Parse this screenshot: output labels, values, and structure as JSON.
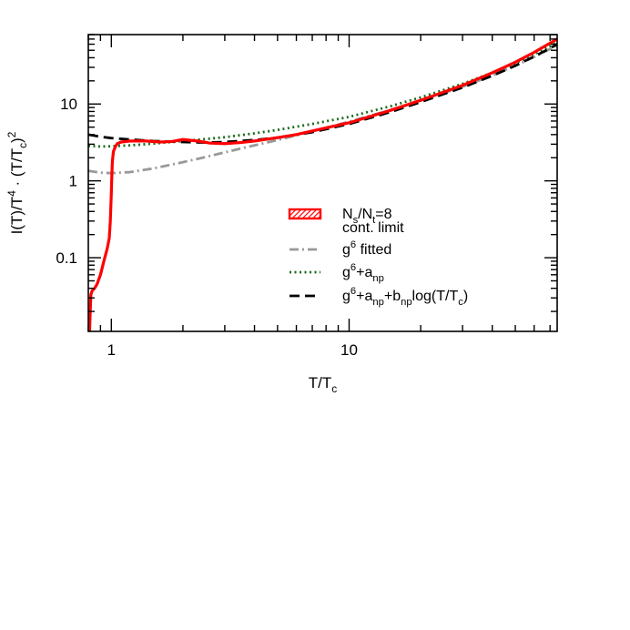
{
  "chart_data": {
    "type": "line",
    "xscale": "log",
    "yscale": "log",
    "xlim": [
      0.8,
      75
    ],
    "ylim": [
      0.011,
      80
    ],
    "xticks": [
      {
        "value": 1,
        "label": "1"
      },
      {
        "value": 10,
        "label": "10"
      }
    ],
    "yticks": [
      {
        "value": 0.1,
        "label": "0.1"
      },
      {
        "value": 1,
        "label": "1"
      },
      {
        "value": 10,
        "label": "10"
      }
    ],
    "xlabel": {
      "main": "T/T",
      "sub": "c"
    },
    "ylabel": {
      "pre": "I(T)/T",
      "sup1": "4",
      "mid": " · (T/T",
      "sub": "c",
      "post": ")",
      "sup2": "2"
    },
    "legend_position": "center-right",
    "series": [
      {
        "key": "lattice",
        "color": "#ff0000",
        "style": "solid",
        "legend": [
          {
            "t": "N"
          },
          {
            "t": "s",
            "k": "sub"
          },
          {
            "t": "/N"
          },
          {
            "t": "t",
            "k": "sub"
          },
          {
            "t": "=8"
          }
        ],
        "legend2": "cont. limit",
        "points": [
          [
            0.81,
            0.011
          ],
          [
            0.815,
            0.02
          ],
          [
            0.82,
            0.033
          ],
          [
            0.83,
            0.037
          ],
          [
            0.85,
            0.04
          ],
          [
            0.87,
            0.045
          ],
          [
            0.9,
            0.06
          ],
          [
            0.93,
            0.09
          ],
          [
            0.96,
            0.13
          ],
          [
            0.98,
            0.18
          ],
          [
            0.99,
            0.3
          ],
          [
            1.0,
            0.7
          ],
          [
            1.005,
            1.2
          ],
          [
            1.01,
            1.8
          ],
          [
            1.02,
            2.4
          ],
          [
            1.04,
            2.8
          ],
          [
            1.06,
            3.05
          ],
          [
            1.1,
            3.2
          ],
          [
            1.2,
            3.3
          ],
          [
            1.4,
            3.3
          ],
          [
            1.6,
            3.2
          ],
          [
            1.8,
            3.25
          ],
          [
            2.0,
            3.45
          ],
          [
            2.3,
            3.3
          ],
          [
            2.6,
            3.1
          ],
          [
            3.0,
            3.05
          ],
          [
            3.5,
            3.15
          ],
          [
            4.0,
            3.3
          ],
          [
            5.0,
            3.65
          ],
          [
            6.0,
            4.0
          ],
          [
            8.0,
            4.9
          ],
          [
            10.0,
            5.7
          ],
          [
            15.0,
            8.3
          ],
          [
            20.0,
            11.2
          ],
          [
            30.0,
            17.5
          ],
          [
            40.0,
            25.5
          ],
          [
            50.0,
            35.0
          ],
          [
            60.0,
            47.0
          ],
          [
            70.0,
            62.0
          ],
          [
            75.0,
            70.0
          ]
        ]
      },
      {
        "key": "g6",
        "color": "#999999",
        "style": "dashdot",
        "legend": [
          {
            "t": "g"
          },
          {
            "t": "6",
            "k": "sup"
          },
          {
            "t": " fitted"
          }
        ],
        "points": [
          [
            0.8,
            1.35
          ],
          [
            0.9,
            1.28
          ],
          [
            1.0,
            1.26
          ],
          [
            1.2,
            1.3
          ],
          [
            1.5,
            1.45
          ],
          [
            2.0,
            1.75
          ],
          [
            2.5,
            2.05
          ],
          [
            3.0,
            2.35
          ],
          [
            4.0,
            2.9
          ],
          [
            5.0,
            3.4
          ],
          [
            7.0,
            4.4
          ],
          [
            10.0,
            5.9
          ],
          [
            15.0,
            8.4
          ],
          [
            20.0,
            11.0
          ],
          [
            30.0,
            16.8
          ],
          [
            40.0,
            23.5
          ],
          [
            50.0,
            31.5
          ],
          [
            60.0,
            41.0
          ],
          [
            70.0,
            52.0
          ],
          [
            75.0,
            58.0
          ]
        ]
      },
      {
        "key": "g6anp",
        "color": "#1a6b1a",
        "style": "dotted",
        "legend": [
          {
            "t": "g"
          },
          {
            "t": "6",
            "k": "sup"
          },
          {
            "t": "+a"
          },
          {
            "t": "np",
            "k": "sub"
          }
        ],
        "points": [
          [
            0.8,
            2.85
          ],
          [
            0.9,
            2.8
          ],
          [
            1.0,
            2.82
          ],
          [
            1.2,
            2.9
          ],
          [
            1.5,
            3.05
          ],
          [
            2.0,
            3.3
          ],
          [
            2.5,
            3.5
          ],
          [
            3.0,
            3.7
          ],
          [
            4.0,
            4.15
          ],
          [
            5.0,
            4.6
          ],
          [
            7.0,
            5.5
          ],
          [
            10.0,
            6.8
          ],
          [
            15.0,
            9.4
          ],
          [
            20.0,
            12.2
          ],
          [
            30.0,
            18.3
          ],
          [
            40.0,
            25.5
          ],
          [
            50.0,
            34.0
          ],
          [
            60.0,
            44.5
          ],
          [
            70.0,
            56.5
          ],
          [
            75.0,
            63.0
          ]
        ]
      },
      {
        "key": "g6log",
        "color": "#000000",
        "style": "dashed",
        "legend": [
          {
            "t": "g"
          },
          {
            "t": "6",
            "k": "sup"
          },
          {
            "t": "+a"
          },
          {
            "t": "np",
            "k": "sub"
          },
          {
            "t": "+b"
          },
          {
            "t": "np",
            "k": "sub"
          },
          {
            "t": "log(T/T"
          },
          {
            "t": "c",
            "k": "sub"
          },
          {
            "t": ")"
          }
        ],
        "points": [
          [
            0.8,
            4.0
          ],
          [
            0.9,
            3.75
          ],
          [
            1.0,
            3.6
          ],
          [
            1.2,
            3.45
          ],
          [
            1.5,
            3.3
          ],
          [
            2.0,
            3.2
          ],
          [
            2.5,
            3.15
          ],
          [
            3.0,
            3.2
          ],
          [
            4.0,
            3.4
          ],
          [
            5.0,
            3.65
          ],
          [
            7.0,
            4.3
          ],
          [
            10.0,
            5.5
          ],
          [
            15.0,
            7.9
          ],
          [
            20.0,
            10.6
          ],
          [
            30.0,
            16.4
          ],
          [
            40.0,
            23.3
          ],
          [
            50.0,
            31.5
          ],
          [
            60.0,
            41.5
          ],
          [
            70.0,
            53.0
          ],
          [
            75.0,
            60.0
          ]
        ]
      }
    ]
  }
}
